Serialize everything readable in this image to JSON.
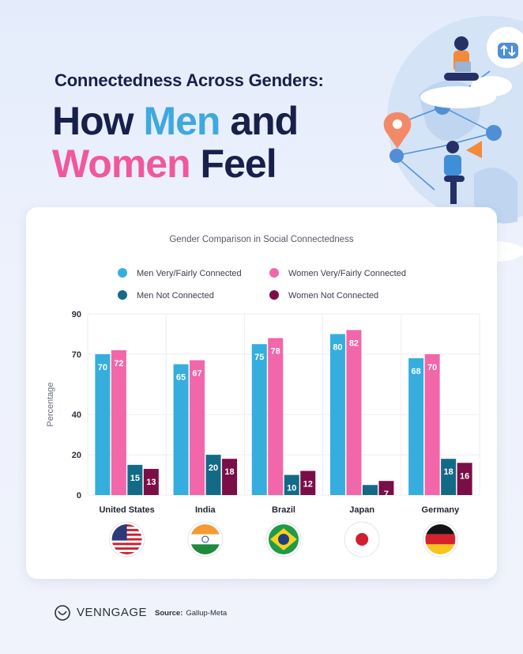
{
  "header": {
    "subtitle": "Connectedness Across Genders:",
    "title_part1": "How ",
    "title_men": "Men",
    "title_part2": " and",
    "title_women": "Women",
    "title_part3": " Feel"
  },
  "colors": {
    "men_connected": "#35aede",
    "women_connected": "#f266aa",
    "men_not": "#136a86",
    "women_not": "#7a0e47",
    "title_dark": "#17204a"
  },
  "chart_data": {
    "type": "bar",
    "title": "Gender Comparison in Social Connectedness",
    "ylabel": "Percentage",
    "xlabel": "",
    "ylim": [
      0,
      90
    ],
    "yticks": [
      0,
      20,
      40,
      70,
      90
    ],
    "grid": true,
    "categories": [
      "United States",
      "India",
      "Brazil",
      "Japan",
      "Germany"
    ],
    "series": [
      {
        "name": "Men Very/Fairly Connected",
        "values": [
          70,
          65,
          75,
          80,
          68
        ]
      },
      {
        "name": "Women Very/Fairly Connected",
        "values": [
          72,
          67,
          78,
          82,
          70
        ]
      },
      {
        "name": "Men Not Connected",
        "values": [
          15,
          20,
          10,
          5,
          18
        ]
      },
      {
        "name": "Women Not Connected",
        "values": [
          13,
          18,
          12,
          7,
          16
        ]
      }
    ]
  },
  "flags": [
    "us-flag-icon",
    "india-flag-icon",
    "brazil-flag-icon",
    "japan-flag-icon",
    "germany-flag-icon"
  ],
  "footer": {
    "brand": "VENNGAGE",
    "source_label": "Source:",
    "source_value": "Gallup-Meta"
  }
}
